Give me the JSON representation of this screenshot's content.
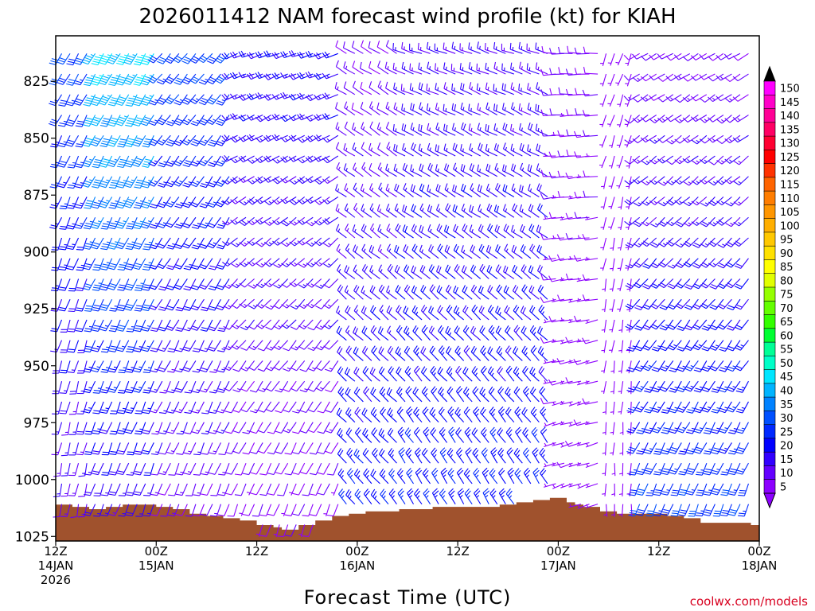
{
  "chart_data": {
    "type": "wind-barb-time-height",
    "title": "2026011412 NAM forecast wind profile (kt) for KIAH",
    "xlabel": "Forecast Time (UTC)",
    "ylabel": "",
    "credit": "coolwx.com/models",
    "x_ticks": [
      {
        "hour": 0,
        "line1": "12Z",
        "line2": "14JAN",
        "line3": "2026"
      },
      {
        "hour": 12,
        "line1": "00Z",
        "line2": "15JAN",
        "line3": ""
      },
      {
        "hour": 24,
        "line1": "12Z",
        "line2": "",
        "line3": ""
      },
      {
        "hour": 36,
        "line1": "00Z",
        "line2": "16JAN",
        "line3": ""
      },
      {
        "hour": 48,
        "line1": "12Z",
        "line2": "",
        "line3": ""
      },
      {
        "hour": 60,
        "line1": "00Z",
        "line2": "17JAN",
        "line3": ""
      },
      {
        "hour": 72,
        "line1": "12Z",
        "line2": "",
        "line3": ""
      },
      {
        "hour": 84,
        "line1": "00Z",
        "line2": "18JAN",
        "line3": ""
      }
    ],
    "x_range_hours": [
      0,
      84
    ],
    "y_axis_pressure_mb": {
      "ticks": [
        825,
        850,
        875,
        900,
        925,
        950,
        975,
        1000,
        1025
      ],
      "top": 805,
      "bottom": 1027,
      "reversed": true
    },
    "colorbar": {
      "values": [
        150,
        145,
        140,
        135,
        130,
        125,
        120,
        115,
        110,
        105,
        100,
        95,
        90,
        85,
        80,
        75,
        70,
        65,
        60,
        55,
        50,
        45,
        40,
        35,
        30,
        25,
        20,
        15,
        10,
        5
      ],
      "colors": [
        "#ff00ff",
        "#ff00c8",
        "#ff0096",
        "#ff0064",
        "#ff0032",
        "#ff0000",
        "#ff3200",
        "#ff6400",
        "#ff7d00",
        "#ff9600",
        "#ffaf00",
        "#ffc800",
        "#ffe100",
        "#ffff00",
        "#e1ff00",
        "#96ff00",
        "#64ff00",
        "#32ff00",
        "#00ff32",
        "#00ff96",
        "#00ffc8",
        "#00e6ff",
        "#00b4ff",
        "#0082ff",
        "#0050ff",
        "#0028ff",
        "#0000ff",
        "#3200ff",
        "#6400ff",
        "#8c00ff"
      ],
      "top_arrow_color": "#000000",
      "bottom_arrow_color": "#8c00ff"
    },
    "terrain": {
      "color": "#a0522d",
      "note": "surface pressure (mb) along forecast hours",
      "surface_pressure": [
        [
          0,
          1011
        ],
        [
          2,
          1012
        ],
        [
          4,
          1013
        ],
        [
          6,
          1012
        ],
        [
          8,
          1011
        ],
        [
          10,
          1011
        ],
        [
          12,
          1012
        ],
        [
          14,
          1013
        ],
        [
          16,
          1015
        ],
        [
          18,
          1016
        ],
        [
          20,
          1017
        ],
        [
          22,
          1018
        ],
        [
          24,
          1020
        ],
        [
          26,
          1021
        ],
        [
          27,
          1022
        ],
        [
          29,
          1020
        ],
        [
          31,
          1018
        ],
        [
          33,
          1016
        ],
        [
          35,
          1015
        ],
        [
          37,
          1014
        ],
        [
          39,
          1014
        ],
        [
          41,
          1013
        ],
        [
          43,
          1013
        ],
        [
          45,
          1012
        ],
        [
          47,
          1012
        ],
        [
          49,
          1012
        ],
        [
          51,
          1012
        ],
        [
          53,
          1011
        ],
        [
          55,
          1010
        ],
        [
          57,
          1009
        ],
        [
          59,
          1008
        ],
        [
          61,
          1010
        ],
        [
          62,
          1011
        ],
        [
          63,
          1012
        ],
        [
          65,
          1014
        ],
        [
          67,
          1015
        ],
        [
          69,
          1015
        ],
        [
          71,
          1015
        ],
        [
          73,
          1016
        ],
        [
          75,
          1017
        ],
        [
          77,
          1019
        ],
        [
          79,
          1019
        ],
        [
          81,
          1019
        ],
        [
          83,
          1020
        ],
        [
          84,
          1020
        ]
      ]
    },
    "wind_barbs": {
      "levels_mb": [
        810,
        819,
        828,
        837,
        846,
        855,
        864,
        873,
        882,
        891,
        900,
        909,
        918,
        927,
        936,
        945,
        954,
        963,
        972,
        981,
        990,
        999,
        1008,
        1017
      ],
      "hours_step": 1,
      "note": "speed (kt) and meteorological direction (deg) keyed by forecast-hour regime; derived from the plotted barbs",
      "regimes": [
        {
          "from_hour": 0,
          "to_hour": 5,
          "dir_upper": 210,
          "dir_lower": 190,
          "spd_upper": 30,
          "spd_lower": 12
        },
        {
          "from_hour": 5,
          "to_hour": 13,
          "dir_upper": 210,
          "dir_lower": 200,
          "spd_upper": 45,
          "spd_lower": 15
        },
        {
          "from_hour": 13,
          "to_hour": 22,
          "dir_upper": 220,
          "dir_lower": 200,
          "spd_upper": 30,
          "spd_lower": 10
        },
        {
          "from_hour": 22,
          "to_hour": 35,
          "dir_upper": 250,
          "dir_lower": 200,
          "spd_upper": 20,
          "spd_lower": 8
        },
        {
          "from_hour": 35,
          "to_hour": 42,
          "dir_upper": 300,
          "dir_lower": 320,
          "spd_upper": 10,
          "spd_lower": 25
        },
        {
          "from_hour": 42,
          "to_hour": 60,
          "dir_upper": 290,
          "dir_lower": 330,
          "spd_upper": 15,
          "spd_lower": 25
        },
        {
          "from_hour": 60,
          "to_hour": 66,
          "dir_upper": 270,
          "dir_lower": 250,
          "spd_upper": 10,
          "spd_lower": 5
        },
        {
          "from_hour": 66,
          "to_hour": 70,
          "dir_upper": 200,
          "dir_lower": 180,
          "spd_upper": 5,
          "spd_lower": 5
        },
        {
          "from_hour": 70,
          "to_hour": 84,
          "dir_upper": 240,
          "dir_lower": 200,
          "spd_upper": 10,
          "spd_lower": 30
        }
      ]
    }
  }
}
